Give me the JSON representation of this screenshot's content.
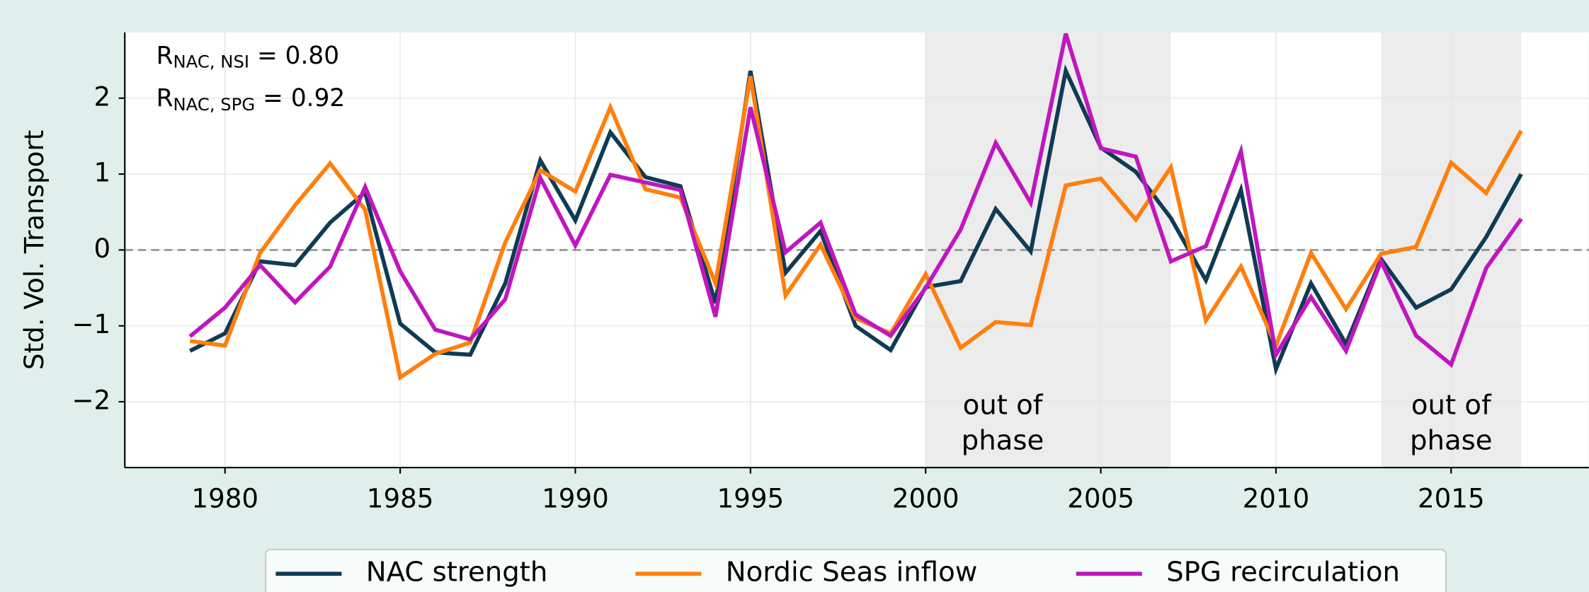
{
  "chart_data": {
    "type": "line",
    "y_label": "Std. Vol. Transport",
    "x": [
      1979,
      1980,
      1981,
      1982,
      1983,
      1984,
      1985,
      1986,
      1987,
      1988,
      1989,
      1990,
      1991,
      1992,
      1993,
      1994,
      1995,
      1996,
      1997,
      1998,
      1999,
      2000,
      2001,
      2002,
      2003,
      2004,
      2005,
      2006,
      2007,
      2008,
      2009,
      2010,
      2011,
      2012,
      2013,
      2014,
      2015,
      2016,
      2017
    ],
    "series": [
      {
        "name": "NAC strength",
        "color": "#0f3b54",
        "values": [
          -1.33,
          -1.1,
          -0.15,
          -0.2,
          0.36,
          0.76,
          -0.97,
          -1.35,
          -1.38,
          -0.44,
          1.18,
          0.39,
          1.55,
          0.96,
          0.84,
          -0.7,
          2.36,
          -0.3,
          0.25,
          -1.0,
          -1.32,
          -0.49,
          -0.41,
          0.54,
          -0.02,
          2.36,
          1.35,
          1.03,
          0.42,
          -0.4,
          0.79,
          -1.57,
          -0.44,
          -1.24,
          -0.12,
          -0.76,
          -0.52,
          0.17,
          1.0
        ]
      },
      {
        "name": "Nordic Seas inflow",
        "color": "#ff7f0e",
        "values": [
          -1.2,
          -1.26,
          -0.04,
          0.59,
          1.14,
          0.53,
          -1.68,
          -1.37,
          -1.22,
          0.1,
          1.05,
          0.77,
          1.88,
          0.8,
          0.69,
          -0.44,
          2.29,
          -0.6,
          0.07,
          -0.9,
          -1.1,
          -0.32,
          -1.29,
          -0.95,
          -0.99,
          0.85,
          0.94,
          0.4,
          1.09,
          -0.93,
          -0.22,
          -1.26,
          -0.04,
          -0.78,
          -0.05,
          0.04,
          1.15,
          0.75,
          1.57
        ]
      },
      {
        "name": "SPG recirculation",
        "color": "#bf17bf",
        "values": [
          -1.14,
          -0.76,
          -0.2,
          -0.69,
          -0.22,
          0.83,
          -0.28,
          -1.05,
          -1.18,
          -0.65,
          0.95,
          0.06,
          0.99,
          0.89,
          0.79,
          -0.88,
          1.88,
          -0.03,
          0.36,
          -0.85,
          -1.13,
          -0.5,
          0.27,
          1.41,
          0.62,
          2.85,
          1.34,
          1.23,
          -0.15,
          0.05,
          1.3,
          -1.38,
          -0.62,
          -1.33,
          -0.15,
          -1.13,
          -1.51,
          -0.24,
          0.41
        ]
      }
    ],
    "xlim": [
      1977.14,
      2018.93
    ],
    "ylim": [
      -2.867,
      2.867
    ],
    "xticks": [
      1980,
      1985,
      1990,
      1995,
      2000,
      2005,
      2010,
      2015
    ],
    "yticks": [
      {
        "value": -2,
        "label": "−2"
      },
      {
        "value": -1,
        "label": "−1"
      },
      0,
      1,
      2
    ],
    "grid": true,
    "hline": 0,
    "shaded_spans": [
      {
        "range": [
          2000,
          2007
        ],
        "label": [
          "out of",
          "phase"
        ]
      },
      {
        "range": [
          2013,
          2017
        ],
        "label": [
          "out of",
          "phase"
        ]
      }
    ],
    "annotations": [
      {
        "main": "R",
        "sub": "NAC, NSI",
        "rest": " = 0.80"
      },
      {
        "main": "R",
        "sub": "NAC, SPG",
        "rest": " = 0.92"
      }
    ],
    "legend": "bottom"
  }
}
